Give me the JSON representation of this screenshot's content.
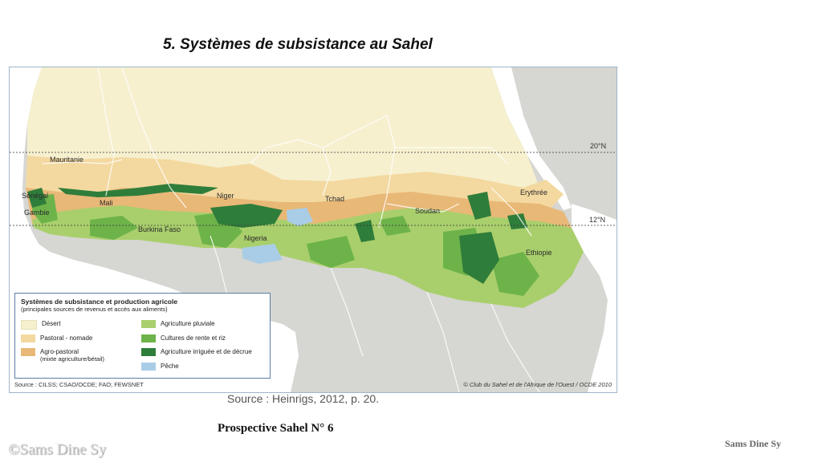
{
  "title": "5. Systèmes de subsistance au Sahel",
  "map": {
    "lat_20": "20°N",
    "lat_12": "12°N",
    "countries": {
      "mauritanie": "Mauritanie",
      "senegal": "Sénégal",
      "gambie": "Gambie",
      "mali": "Mali",
      "burkina": "Burkina Faso",
      "niger": "Niger",
      "nigeria": "Nigeria",
      "tchad": "Tchad",
      "soudan": "Soudan",
      "erythree": "Erythrée",
      "ethiopie": "Ethiopie"
    },
    "colors": {
      "desert": "#f6f0cf",
      "pastoral": "#f3d9a0",
      "agropastoral": "#e8b877",
      "pluviale": "#a9cf6c",
      "rente": "#6db34a",
      "irriguee": "#2f7d3a",
      "peche": "#a9cde6",
      "ocean": "#ffffff",
      "land": "#d6d6d2"
    }
  },
  "legend": {
    "heading": "Systèmes de subsistance et production agricole",
    "subheading": "(principales sources de revenus et accès aux aliments)",
    "items": {
      "desert": "Désert",
      "pastoral": "Pastoral - nomade",
      "agropastoral": "Agro-pastoral",
      "agropastoral_sub": "(mixte agriculture/bétail)",
      "pluviale": "Agriculture pluviale",
      "rente": "Cultures de rente et riz",
      "irriguee": "Agriculture irriguée et de décrue",
      "peche": "Pêche"
    },
    "source": "Source : CILSS; CSAO/OCDE; FAO; FEWSNET",
    "copyright": "© Club du Sahel et de l'Afrique de l'Ouest / OCDE 2010"
  },
  "source_caption": "Source : Heinrigs, 2012,  p. 20.",
  "prospective": "Prospective Sahel N° 6",
  "watermark_left": "©Sams Dine Sy",
  "watermark_right": "Sams Dine Sy"
}
